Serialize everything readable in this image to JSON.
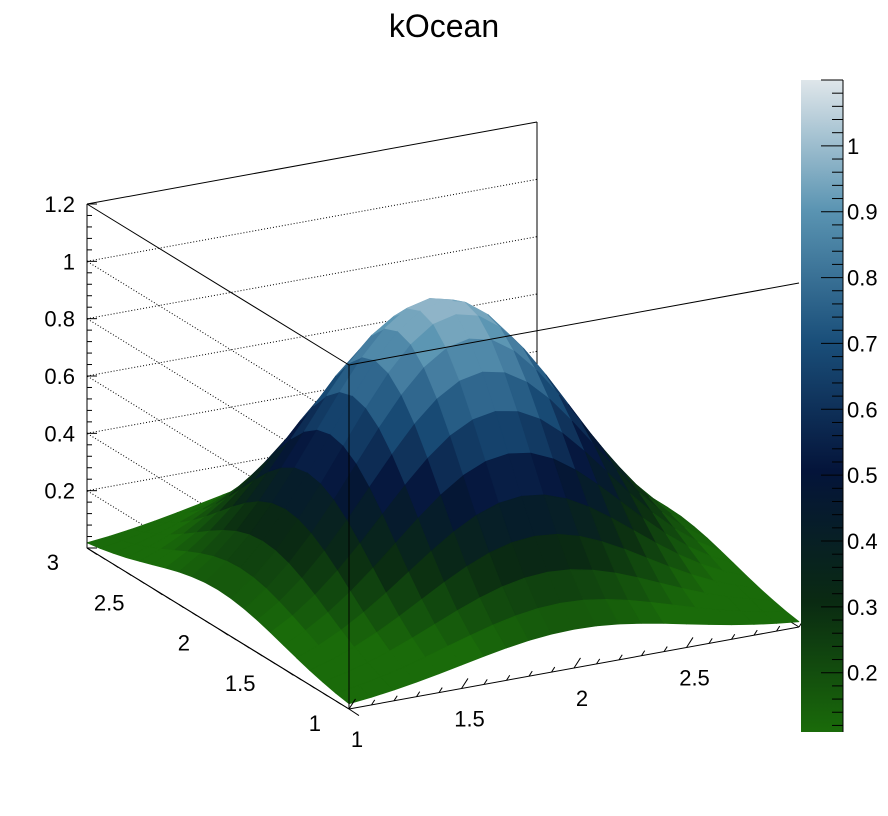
{
  "chart_data": {
    "type": "surface",
    "title": "kOcean",
    "palette": "kOcean",
    "function": "z = exp(-0.5*((x-2)^2+(y-2)^2)/0.5^2)",
    "x": [
      1,
      1.1,
      1.2,
      1.3,
      1.4,
      1.5,
      1.6,
      1.7,
      1.8,
      1.9,
      2,
      2.1,
      2.2,
      2.3,
      2.4,
      2.5,
      2.6,
      2.7,
      2.8,
      2.9,
      3
    ],
    "y": [
      1,
      1.1,
      1.2,
      1.3,
      1.4,
      1.5,
      1.6,
      1.7,
      1.8,
      1.9,
      2,
      2.1,
      2.2,
      2.3,
      2.4,
      2.5,
      2.6,
      2.7,
      2.8,
      2.9,
      3
    ],
    "xlim": [
      1,
      3
    ],
    "ylim": [
      1,
      3
    ],
    "zlim": [
      0,
      1.2
    ],
    "x_tick_labels": [
      "1",
      "1.5",
      "2",
      "2.5",
      "3"
    ],
    "y_tick_labels": [
      "1",
      "1.5",
      "2",
      "2.5",
      "3"
    ],
    "z_tick_labels": [
      "0.2",
      "0.4",
      "0.6",
      "0.8",
      "1",
      "1.2"
    ],
    "colorbar": {
      "range": [
        0.11,
        1.1
      ],
      "tick_labels": [
        "0.2",
        "0.3",
        "0.4",
        "0.5",
        "0.6",
        "0.7",
        "0.8",
        "0.9",
        "1"
      ],
      "stops": [
        "#1a6b0a",
        "#0a2a12",
        "#04143a",
        "#1a4f7a",
        "#5a94b2",
        "#dfe6ea"
      ]
    },
    "grid": true
  }
}
